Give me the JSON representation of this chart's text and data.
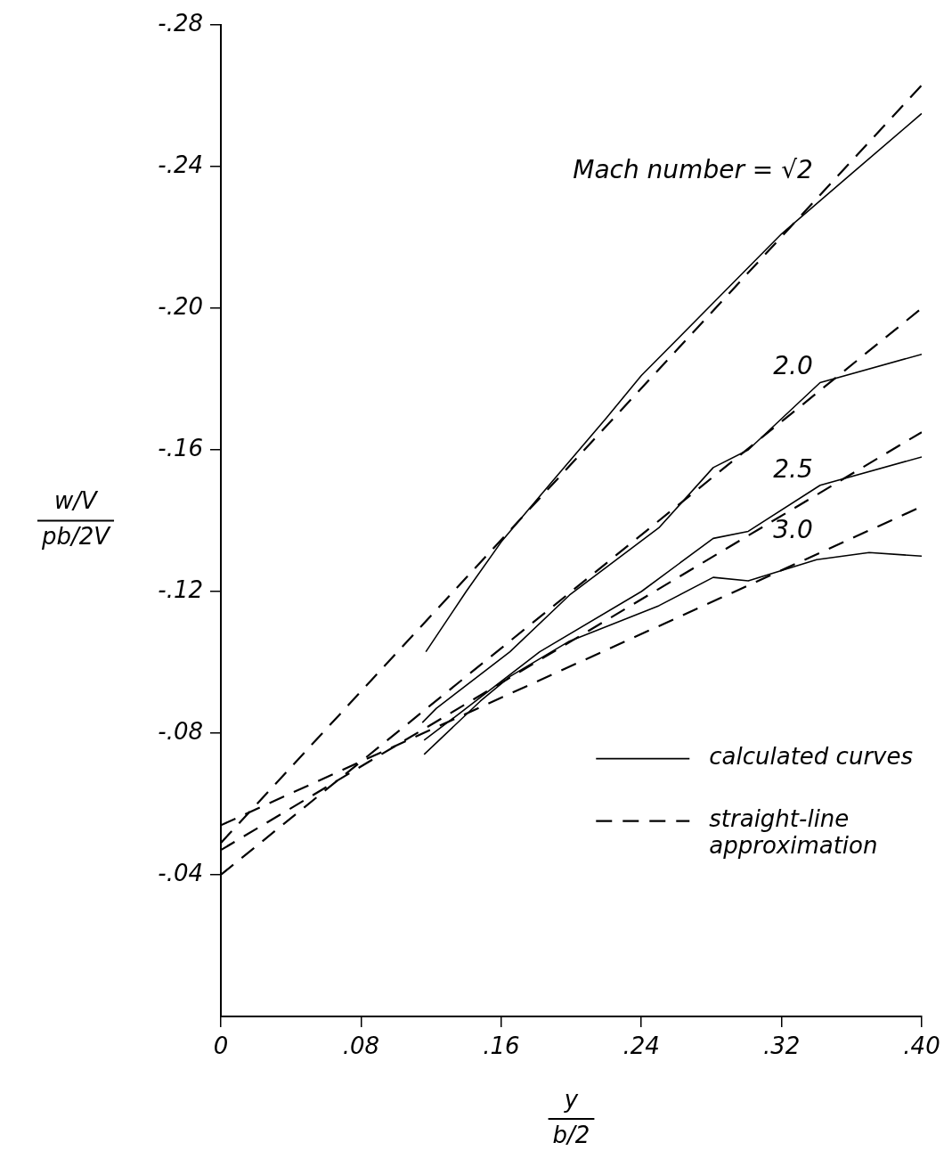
{
  "chart_data": {
    "type": "line",
    "xlabel": "y\nb/2",
    "ylabel": "w/V\npb/2V",
    "xlim": [
      0,
      0.4
    ],
    "xticks": [
      0,
      {
        "value": 0.08,
        "label": ".08"
      },
      {
        "value": 0.16,
        "label": ".16"
      },
      {
        "value": 0.24,
        "label": ".24"
      },
      {
        "value": 0.32,
        "label": ".32"
      },
      {
        "value": 0.4,
        "label": ".40"
      }
    ],
    "ylim": [
      0,
      -0.28
    ],
    "yticks": [
      {
        "value": -0.04,
        "label": "-.04"
      },
      {
        "value": -0.08,
        "label": "-.08"
      },
      {
        "value": -0.12,
        "label": "-.12"
      },
      {
        "value": -0.16,
        "label": "-.16"
      },
      {
        "value": -0.2,
        "label": "-.20"
      },
      {
        "value": -0.24,
        "label": "-.24"
      },
      {
        "value": -0.28,
        "label": "-.28"
      }
    ],
    "grid": false,
    "legend": "bottom right",
    "marker": "none",
    "series": [
      {
        "name": "calculated curves",
        "color": "#000000",
        "line_style": "solid",
        "x": [
          0.117,
          0.14,
          0.16,
          0.189,
          0.22,
          0.24,
          0.28,
          0.32,
          0.36,
          0.4
        ],
        "values": [
          -0.103,
          -0.12,
          -0.134,
          -0.151,
          -0.169,
          -0.181,
          -0.201,
          -0.221,
          -0.238,
          -0.255
        ]
      },
      {
        "name": "straight-line approximation",
        "color": "#000000",
        "line_style": "dashed",
        "x": [
          0,
          0.4
        ],
        "values": [
          -0.049,
          -0.263
        ]
      },
      {
        "color": "#000000",
        "line_style": "solid",
        "x": [
          0.115,
          0.123,
          0.165,
          0.199,
          0.25,
          0.281,
          0.301,
          0.342,
          0.4
        ],
        "values": [
          -0.083,
          -0.087,
          -0.103,
          -0.119,
          -0.138,
          -0.155,
          -0.16,
          -0.179,
          -0.187
        ]
      },
      {
        "color": "#000000",
        "line_style": "dashed",
        "x": [
          0,
          0.4
        ],
        "values": [
          -0.04,
          -0.2
        ]
      },
      {
        "color": "#000000",
        "line_style": "solid",
        "x": [
          0.116,
          0.14,
          0.182,
          0.24,
          0.281,
          0.301,
          0.342,
          0.4
        ],
        "values": [
          -0.078,
          -0.087,
          -0.103,
          -0.12,
          -0.135,
          -0.137,
          -0.15,
          -0.158
        ]
      },
      {
        "color": "#000000",
        "line_style": "dashed",
        "x": [
          0,
          0.4
        ],
        "values": [
          -0.047,
          -0.165
        ]
      },
      {
        "color": "#000000",
        "line_style": "solid",
        "x": [
          0.116,
          0.148,
          0.165,
          0.199,
          0.25,
          0.281,
          0.301,
          0.34,
          0.37,
          0.4
        ],
        "values": [
          -0.074,
          -0.089,
          -0.096,
          -0.106,
          -0.116,
          -0.124,
          -0.123,
          -0.129,
          -0.131,
          -0.13
        ]
      },
      {
        "color": "#000000",
        "line_style": "dashed",
        "x": [
          0,
          0.4
        ],
        "values": [
          -0.054,
          -0.144
        ]
      }
    ],
    "annotations": [
      "Mach number = √2",
      "2.0",
      "2.5",
      "3.0"
    ]
  }
}
